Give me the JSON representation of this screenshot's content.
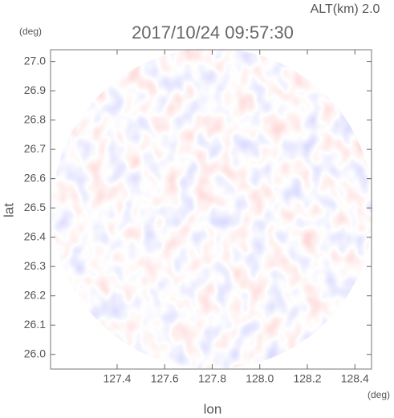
{
  "chart_data": {
    "type": "image",
    "title": "2017/10/24 09:57:30",
    "annotation": "ALT(km) 2.0",
    "x_label": "lon",
    "y_label": "lat",
    "x_unit": "(deg)",
    "y_unit": "(deg)",
    "xlim": [
      127.12,
      128.47
    ],
    "ylim": [
      25.95,
      27.04
    ],
    "xticks": [
      127.4,
      127.6,
      127.8,
      {
        "value": 128,
        "label": "128.0"
      },
      128.2,
      128.4
    ],
    "yticks": [
      {
        "value": 26,
        "label": "26.0"
      },
      26.1,
      26.2,
      26.3,
      26.4,
      26.5,
      26.6,
      26.7,
      26.8,
      26.9,
      {
        "value": 27,
        "label": "27.0"
      }
    ]
  }
}
